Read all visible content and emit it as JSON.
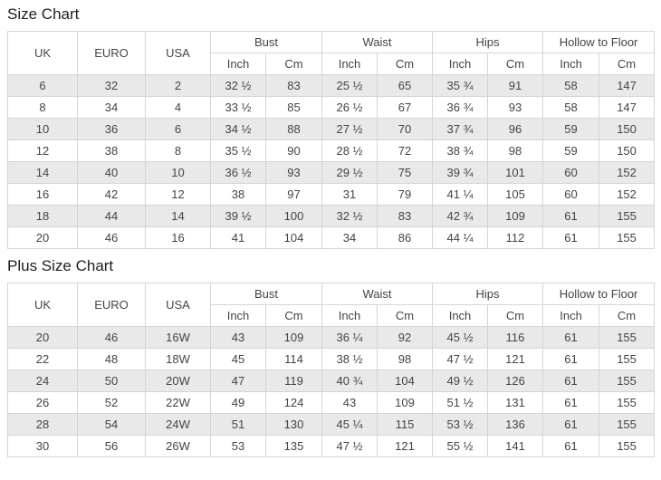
{
  "colors": {
    "stripe": "#e9e9e9",
    "border": "#d5d5d5",
    "text": "#444444",
    "title_text": "#1f1f1f",
    "header_bg": "#ffffff",
    "page_bg": "#ffffff"
  },
  "tables": [
    {
      "title": "Size Chart",
      "columns": {
        "size_cols": [
          "UK",
          "EURO",
          "USA"
        ],
        "measure_groups": [
          "Bust",
          "Waist",
          "Hips",
          "Hollow to Floor"
        ],
        "unit_cols": [
          "Inch",
          "Cm"
        ]
      },
      "rows": [
        [
          "6",
          "32",
          "2",
          "32 ½",
          "83",
          "25 ½",
          "65",
          "35 ¾",
          "91",
          "58",
          "147"
        ],
        [
          "8",
          "34",
          "4",
          "33 ½",
          "85",
          "26 ½",
          "67",
          "36 ¾",
          "93",
          "58",
          "147"
        ],
        [
          "10",
          "36",
          "6",
          "34 ½",
          "88",
          "27 ½",
          "70",
          "37 ¾",
          "96",
          "59",
          "150"
        ],
        [
          "12",
          "38",
          "8",
          "35 ½",
          "90",
          "28 ½",
          "72",
          "38 ¾",
          "98",
          "59",
          "150"
        ],
        [
          "14",
          "40",
          "10",
          "36 ½",
          "93",
          "29 ½",
          "75",
          "39 ¾",
          "101",
          "60",
          "152"
        ],
        [
          "16",
          "42",
          "12",
          "38",
          "97",
          "31",
          "79",
          "41 ¼",
          "105",
          "60",
          "152"
        ],
        [
          "18",
          "44",
          "14",
          "39 ½",
          "100",
          "32 ½",
          "83",
          "42 ¾",
          "109",
          "61",
          "155"
        ],
        [
          "20",
          "46",
          "16",
          "41",
          "104",
          "34",
          "86",
          "44 ¼",
          "112",
          "61",
          "155"
        ]
      ]
    },
    {
      "title": "Plus Size Chart",
      "columns": {
        "size_cols": [
          "UK",
          "EURO",
          "USA"
        ],
        "measure_groups": [
          "Bust",
          "Waist",
          "Hips",
          "Hollow to Floor"
        ],
        "unit_cols": [
          "Inch",
          "Cm"
        ]
      },
      "rows": [
        [
          "20",
          "46",
          "16W",
          "43",
          "109",
          "36 ¼",
          "92",
          "45 ½",
          "116",
          "61",
          "155"
        ],
        [
          "22",
          "48",
          "18W",
          "45",
          "114",
          "38 ½",
          "98",
          "47 ½",
          "121",
          "61",
          "155"
        ],
        [
          "24",
          "50",
          "20W",
          "47",
          "119",
          "40 ¾",
          "104",
          "49 ½",
          "126",
          "61",
          "155"
        ],
        [
          "26",
          "52",
          "22W",
          "49",
          "124",
          "43",
          "109",
          "51 ½",
          "131",
          "61",
          "155"
        ],
        [
          "28",
          "54",
          "24W",
          "51",
          "130",
          "45 ¼",
          "115",
          "53 ½",
          "136",
          "61",
          "155"
        ],
        [
          "30",
          "56",
          "26W",
          "53",
          "135",
          "47 ½",
          "121",
          "55 ½",
          "141",
          "61",
          "155"
        ]
      ]
    }
  ]
}
